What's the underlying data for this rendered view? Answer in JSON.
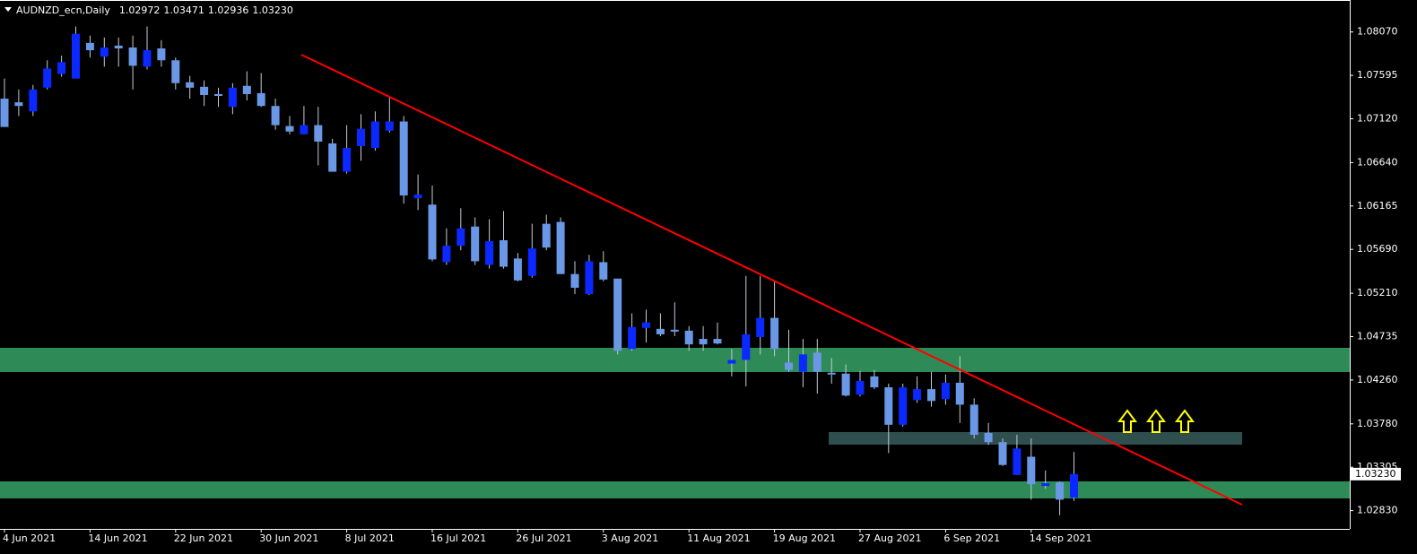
{
  "header": {
    "symbol": "AUDNZD_ecn,Daily",
    "quote": [
      "1.02972",
      "1.03471",
      "1.02936",
      "1.03230"
    ]
  },
  "chart_data": {
    "type": "candlestick",
    "categories": [
      "4 Jun 2021",
      null,
      null,
      null,
      null,
      null,
      "14 Jun 2021",
      null,
      null,
      null,
      null,
      null,
      "22 Jun 2021",
      null,
      null,
      null,
      null,
      null,
      "30 Jun 2021",
      null,
      null,
      null,
      null,
      null,
      "8 Jul 2021",
      null,
      null,
      null,
      null,
      null,
      "16 Jul 2021",
      null,
      null,
      null,
      null,
      null,
      "26 Jul 2021",
      null,
      null,
      null,
      null,
      null,
      "3 Aug 2021",
      null,
      null,
      null,
      null,
      null,
      "11 Aug 2021",
      null,
      null,
      null,
      null,
      null,
      "19 Aug 2021",
      null,
      null,
      null,
      null,
      null,
      "27 Aug 2021",
      null,
      null,
      null,
      null,
      null,
      "6 Sep 2021",
      null,
      null,
      null,
      null,
      null,
      "14 Sep 2021",
      null,
      null,
      null
    ],
    "open": [
      1.0734,
      1.073,
      1.072,
      1.0746,
      1.0761,
      1.0756,
      1.0795,
      1.078,
      1.0792,
      1.079,
      1.0769,
      1.0789,
      1.0776,
      1.0752,
      1.0747,
      1.0739,
      1.0725,
      1.0748,
      1.074,
      1.0726,
      1.0704,
      1.0695,
      1.0705,
      1.0685,
      1.0654,
      1.0682,
      1.068,
      1.0699,
      1.0709,
      1.0625,
      1.0618,
      1.0555,
      1.0573,
      1.0594,
      1.0552,
      1.0579,
      1.0559,
      1.054,
      1.0597,
      1.0599,
      1.0542,
      1.052,
      1.0555,
      1.0537,
      1.046,
      1.0483,
      1.0482,
      1.0481,
      1.048,
      1.0471,
      1.0471,
      1.0444,
      1.0448,
      1.0473,
      1.0494,
      1.0445,
      1.0435,
      1.0456,
      1.0434,
      1.0433,
      1.041,
      1.043,
      1.0418,
      1.0377,
      1.0404,
      1.0416,
      1.0405,
      1.0423,
      1.0399,
      1.0368,
      1.0358,
      1.0322,
      1.0342,
      1.031,
      1.0314,
      1.02972
    ],
    "high": [
      1.0756,
      1.0744,
      1.0749,
      1.0776,
      1.0781,
      1.0813,
      1.0803,
      1.0801,
      1.0801,
      1.0803,
      1.0813,
      1.0798,
      1.0779,
      1.0759,
      1.0754,
      1.0746,
      1.0751,
      1.0764,
      1.0762,
      1.0734,
      1.0715,
      1.0726,
      1.0725,
      1.069,
      1.0705,
      1.0717,
      1.072,
      1.0736,
      1.0715,
      1.0651,
      1.0639,
      1.0592,
      1.0614,
      1.0604,
      1.0602,
      1.0611,
      1.0565,
      1.0597,
      1.0607,
      1.0604,
      1.0556,
      1.0563,
      1.0567,
      1.0537,
      1.0499,
      1.0503,
      1.0499,
      1.0511,
      1.0485,
      1.0485,
      1.0489,
      1.046,
      1.054,
      1.054,
      1.0535,
      1.0481,
      1.0471,
      1.0471,
      1.045,
      1.0443,
      1.0436,
      1.0437,
      1.0422,
      1.0422,
      1.043,
      1.0435,
      1.0432,
      1.0452,
      1.0406,
      1.0379,
      1.0362,
      1.0366,
      1.0362,
      1.0327,
      1.0315,
      1.03471
    ],
    "low": [
      1.0703,
      1.0715,
      1.0715,
      1.0744,
      1.0758,
      1.0756,
      1.0779,
      1.0769,
      1.0769,
      1.0744,
      1.0766,
      1.0769,
      1.0744,
      1.0734,
      1.0726,
      1.0725,
      1.0717,
      1.0732,
      1.0725,
      1.07,
      1.0695,
      1.0695,
      1.0661,
      1.0654,
      1.0652,
      1.0666,
      1.0677,
      1.0697,
      1.0619,
      1.0612,
      1.0556,
      1.0552,
      1.0568,
      1.0552,
      1.0548,
      1.0548,
      1.0534,
      1.0538,
      1.0568,
      1.0542,
      1.052,
      1.0519,
      1.0534,
      1.0454,
      1.0458,
      1.0467,
      1.0474,
      1.0474,
      1.0458,
      1.0458,
      1.0465,
      1.043,
      1.0419,
      1.0454,
      1.0452,
      1.0435,
      1.0418,
      1.0411,
      1.0422,
      1.0408,
      1.0408,
      1.0416,
      1.0346,
      1.0375,
      1.0401,
      1.0397,
      1.0399,
      1.0379,
      1.0362,
      1.0355,
      1.0332,
      1.0322,
      1.0295,
      1.0307,
      1.0278,
      1.02936
    ],
    "close": [
      1.0703,
      1.0726,
      1.0744,
      1.0767,
      1.0774,
      1.0805,
      1.0787,
      1.079,
      1.0789,
      1.077,
      1.0787,
      1.0776,
      1.0751,
      1.0746,
      1.0738,
      1.0737,
      1.0746,
      1.0739,
      1.0726,
      1.0705,
      1.0698,
      1.0705,
      1.0687,
      1.0654,
      1.068,
      1.0701,
      1.0709,
      1.0709,
      1.0628,
      1.0629,
      1.0558,
      1.0573,
      1.0592,
      1.0556,
      1.0578,
      1.055,
      1.0535,
      1.057,
      1.0571,
      1.0542,
      1.0527,
      1.0556,
      1.0536,
      1.0458,
      1.0484,
      1.0489,
      1.0476,
      1.0479,
      1.0465,
      1.0465,
      1.0466,
      1.0448,
      1.0476,
      1.0494,
      1.046,
      1.0437,
      1.0454,
      1.0435,
      1.0432,
      1.0409,
      1.0425,
      1.0418,
      1.0377,
      1.0418,
      1.0416,
      1.0403,
      1.0423,
      1.0399,
      1.0366,
      1.0358,
      1.0333,
      1.0351,
      1.0312,
      1.0313,
      1.0295,
      1.0323
    ],
    "ylim": [
      1.0263,
      1.0842
    ],
    "yticks": [
      {
        "value": 1.0807,
        "label": "1.08070"
      },
      1.07595,
      {
        "value": 1.0712,
        "label": "1.07120"
      },
      {
        "value": 1.0664,
        "label": "1.06640"
      },
      1.06165,
      {
        "value": 1.0569,
        "label": "1.05690"
      },
      {
        "value": 1.0521,
        "label": "1.05210"
      },
      1.04735,
      {
        "value": 1.0426,
        "label": "1.04260"
      },
      {
        "value": 1.0378,
        "label": "1.03780"
      },
      1.03305,
      {
        "value": 1.0283,
        "label": "1.02830"
      }
    ],
    "bull_color": "#0a28ff",
    "bear_color": "#6a98e6",
    "wick_color": "#c4cad6",
    "grid": false
  }
}
